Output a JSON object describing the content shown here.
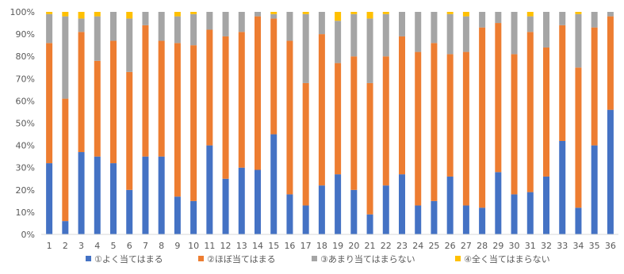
{
  "chart_data": {
    "type": "bar",
    "stacked": true,
    "normalized_percent": true,
    "title": "",
    "xlabel": "",
    "ylabel": "",
    "ylim": [
      0,
      100
    ],
    "y_ticks": [
      "0%",
      "10%",
      "20%",
      "30%",
      "40%",
      "50%",
      "60%",
      "70%",
      "80%",
      "90%",
      "100%"
    ],
    "grid": false,
    "legend_position": "bottom",
    "categories": [
      "1",
      "2",
      "3",
      "4",
      "5",
      "6",
      "7",
      "8",
      "9",
      "10",
      "11",
      "12",
      "13",
      "14",
      "15",
      "16",
      "17",
      "18",
      "19",
      "20",
      "21",
      "22",
      "23",
      "24",
      "25",
      "26",
      "27",
      "28",
      "29",
      "30",
      "31",
      "32",
      "33",
      "34",
      "35",
      "36"
    ],
    "series": [
      {
        "name": "①よく当てはまる",
        "color": "#4472C4",
        "values": [
          32,
          6,
          37,
          35,
          32,
          20,
          35,
          35,
          17,
          15,
          40,
          25,
          30,
          29,
          45,
          18,
          13,
          22,
          27,
          20,
          9,
          22,
          27,
          13,
          15,
          26,
          13,
          12,
          28,
          18,
          19,
          26,
          42,
          12,
          40,
          56
        ]
      },
      {
        "name": "②ほぼ当てはまる",
        "color": "#ED7D31",
        "values": [
          54,
          55,
          54,
          43,
          55,
          53,
          59,
          52,
          69,
          70,
          52,
          64,
          61,
          69,
          52,
          69,
          55,
          68,
          50,
          60,
          59,
          58,
          62,
          69,
          71,
          55,
          69,
          81,
          67,
          63,
          72,
          58,
          52,
          63,
          53,
          42
        ]
      },
      {
        "name": "③あまり当てはまらない",
        "color": "#A5A5A5",
        "values": [
          13,
          37,
          6,
          20,
          13,
          24,
          6,
          13,
          12,
          14,
          8,
          11,
          9,
          2,
          2,
          13,
          31,
          10,
          19,
          19,
          29,
          19,
          11,
          18,
          14,
          18,
          16,
          7,
          5,
          19,
          7,
          16,
          6,
          24,
          7,
          2
        ]
      },
      {
        "name": "④全く当てはまらない",
        "color": "#FFC000",
        "values": [
          1,
          2,
          3,
          2,
          0,
          3,
          0,
          0,
          2,
          1,
          0,
          0,
          0,
          0,
          1,
          0,
          1,
          0,
          4,
          1,
          3,
          1,
          0,
          0,
          0,
          1,
          2,
          0,
          0,
          0,
          2,
          0,
          0,
          1,
          0,
          0
        ]
      }
    ]
  }
}
